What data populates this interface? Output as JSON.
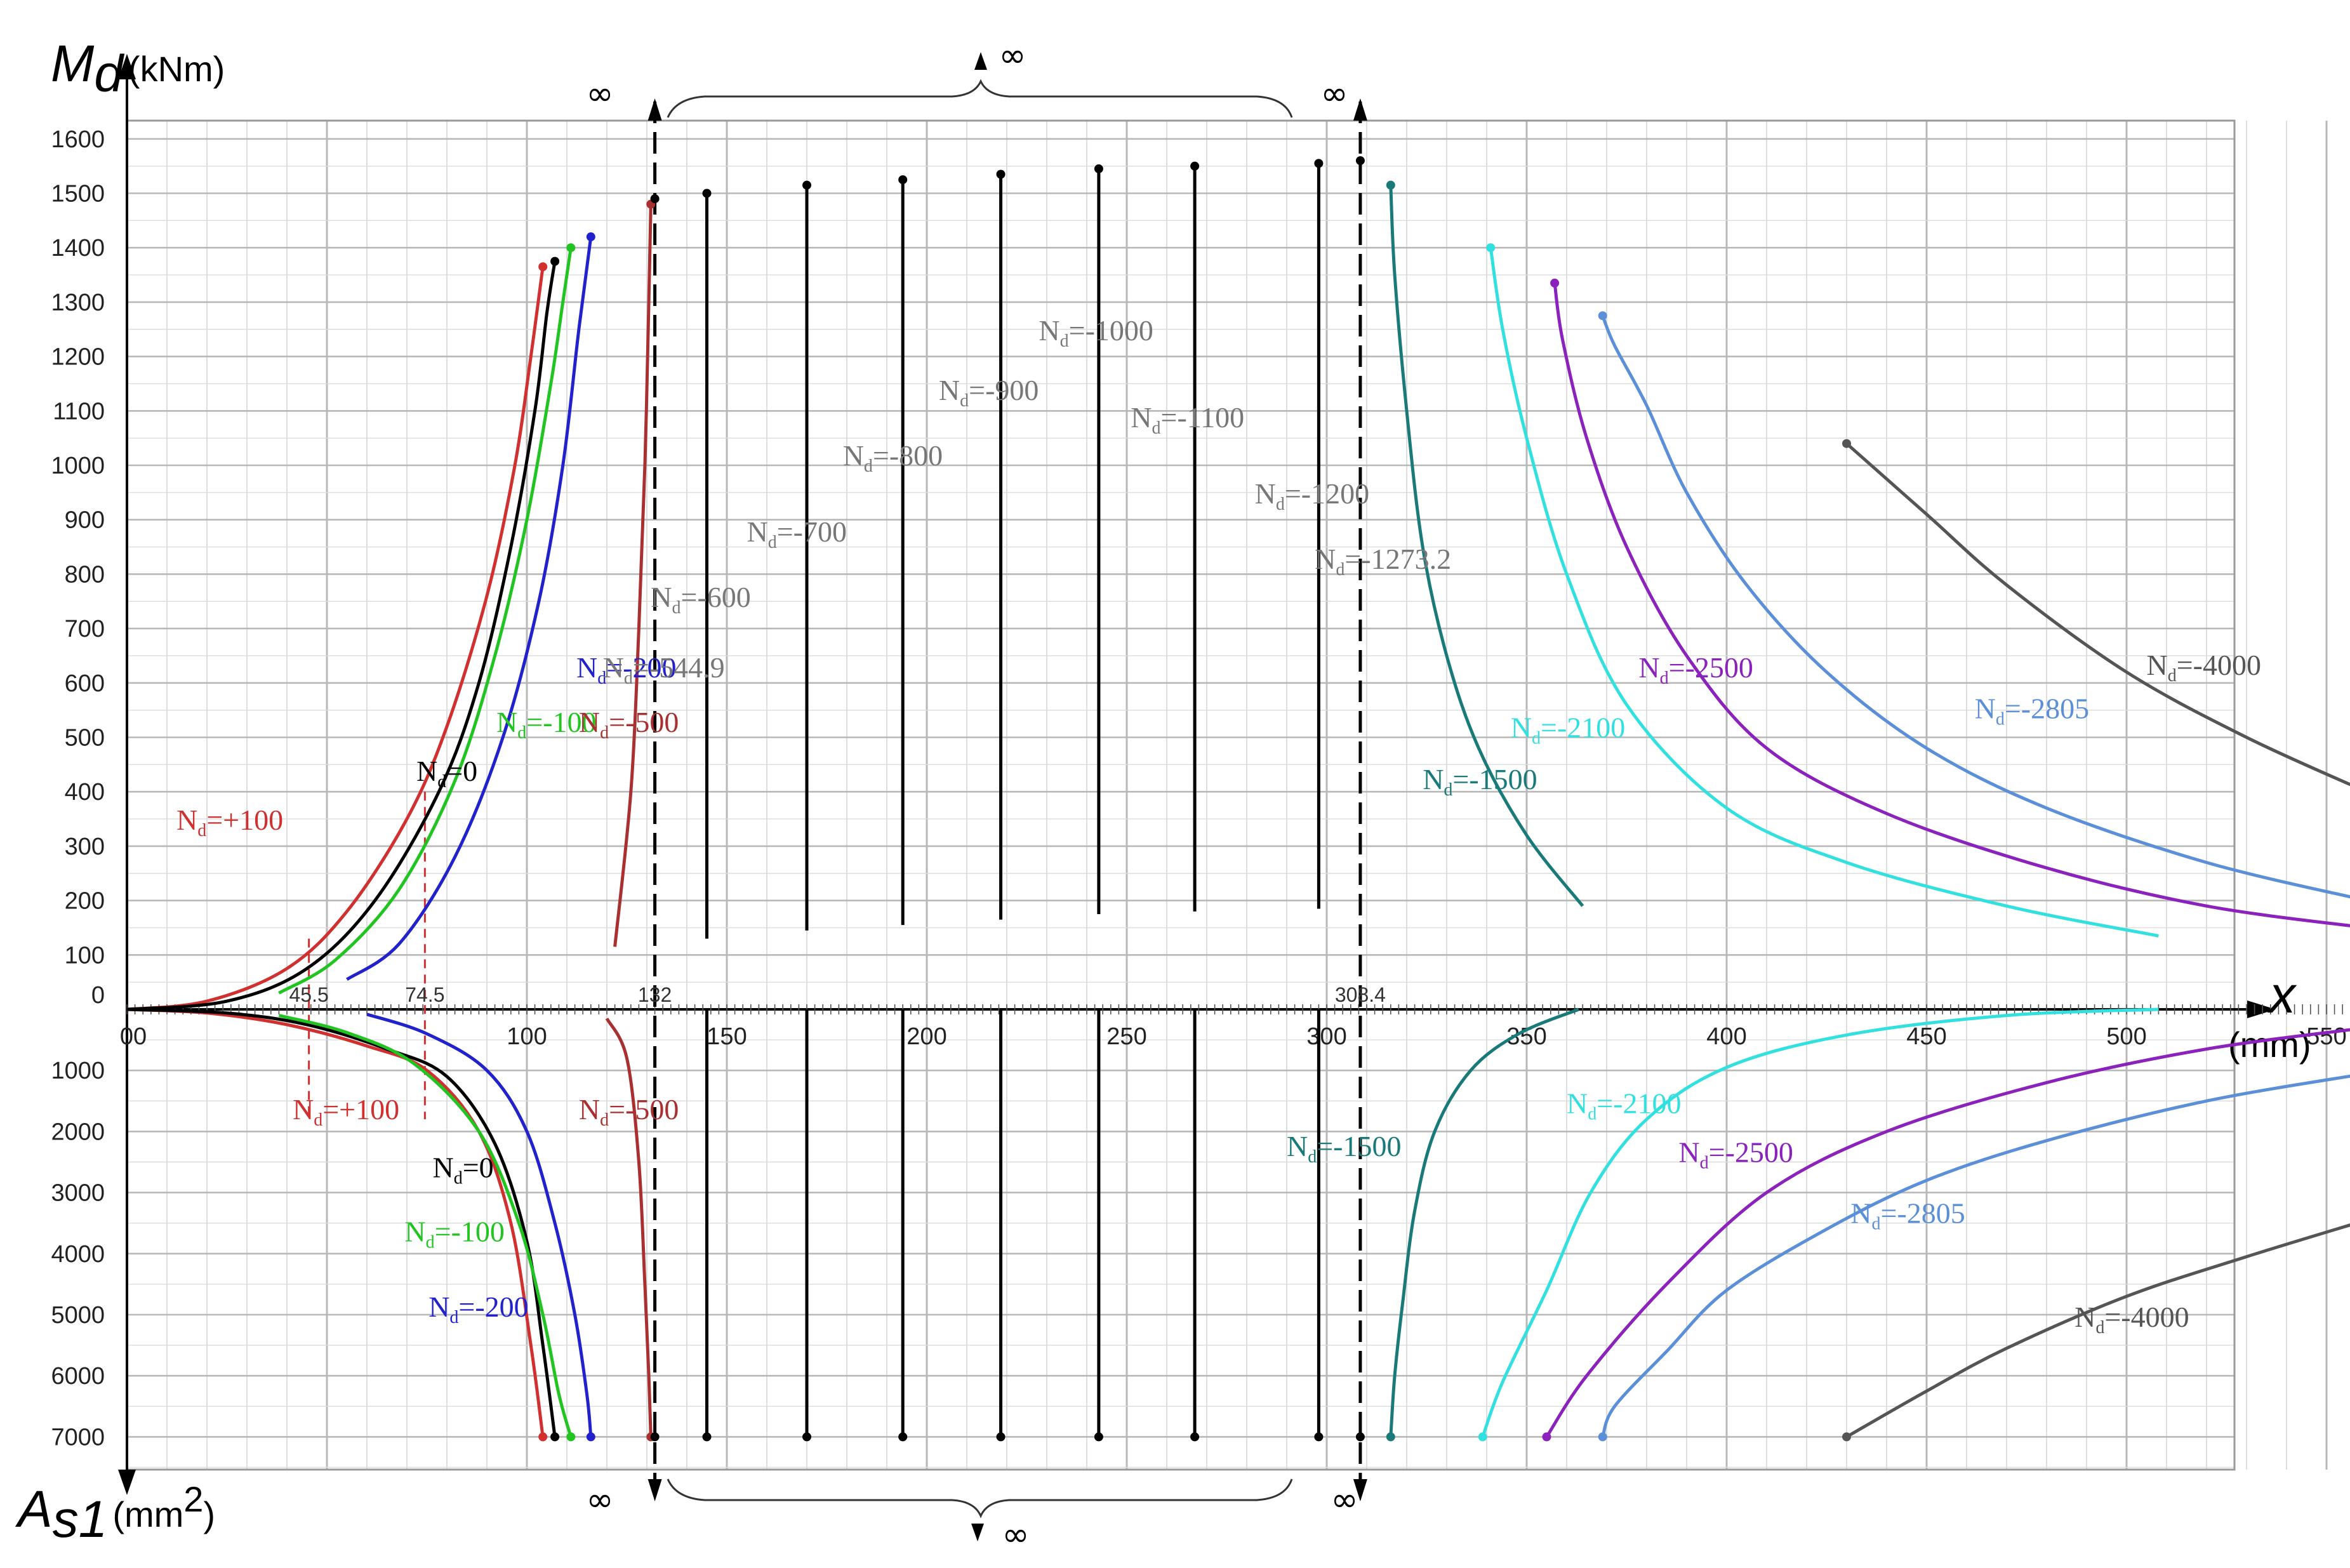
{
  "chart_data": {
    "type": "line",
    "title": "",
    "top_axis": {
      "symbol": "M",
      "subscript": "d",
      "unit": "(kNm)",
      "range": [
        0,
        1600
      ],
      "ticks": [
        "0",
        "100",
        "200",
        "300",
        "400",
        "500",
        "600",
        "700",
        "800",
        "900",
        "1000",
        "1100",
        "1200",
        "1300",
        "1400",
        "1500",
        "1600"
      ]
    },
    "bottom_axis": {
      "symbol": "A",
      "subscript": "s1",
      "unit": "(mm",
      "unit_sup": "2",
      "unit_close": ")",
      "range": [
        0,
        7000
      ],
      "ticks": [
        "1000",
        "2000",
        "3000",
        "4000",
        "5000",
        "6000",
        "7000"
      ]
    },
    "x_axis": {
      "symbol": "x",
      "unit": "(mm)",
      "range": [
        0,
        560
      ],
      "ticks": [
        "00",
        "100",
        "150",
        "200",
        "250",
        "300",
        "350",
        "400",
        "450",
        "500",
        "550"
      ]
    },
    "infinity_symbol": "∞",
    "marked_x": [
      {
        "label": "45.5",
        "x": 45.5,
        "color": "#d03030"
      },
      {
        "label": "74.5",
        "x": 74.5,
        "color": "#d03030"
      },
      {
        "label": "132",
        "x": 132,
        "color": "#000000"
      },
      {
        "label": "308.4",
        "x": 308.4,
        "color": "#000000"
      }
    ],
    "vertical_lines": [
      {
        "x": 145,
        "md_top": 1500,
        "md_bottom": 130,
        "as_end": 7000
      },
      {
        "x": 170,
        "md_top": 1515,
        "md_bottom": 145,
        "as_end": 7000
      },
      {
        "x": 194,
        "md_top": 1525,
        "md_bottom": 155,
        "as_end": 7000
      },
      {
        "x": 218.5,
        "md_top": 1535,
        "md_bottom": 165,
        "as_end": 7000
      },
      {
        "x": 243,
        "md_top": 1545,
        "md_bottom": 175,
        "as_end": 7000
      },
      {
        "x": 267,
        "md_top": 1550,
        "md_bottom": 180,
        "as_end": 7000
      },
      {
        "x": 298,
        "md_top": 1555,
        "md_bottom": 185,
        "as_end": 7000
      }
    ],
    "series": [
      {
        "name": "Nₐ=+100",
        "label_text": "+100",
        "color": "#d03030",
        "top": [
          [
            0,
            0
          ],
          [
            20,
            15
          ],
          [
            40,
            75
          ],
          [
            55,
            180
          ],
          [
            70,
            350
          ],
          [
            80,
            520
          ],
          [
            90,
            760
          ],
          [
            97,
            1000
          ],
          [
            101,
            1200
          ],
          [
            104,
            1365
          ]
        ],
        "bottom": [
          [
            0,
            0
          ],
          [
            20,
            60
          ],
          [
            40,
            250
          ],
          [
            60,
            600
          ],
          [
            75,
            1000
          ],
          [
            88,
            2000
          ],
          [
            96,
            3500
          ],
          [
            101,
            5500
          ],
          [
            104,
            7000
          ]
        ]
      },
      {
        "name": "0",
        "label_text": "0",
        "color": "#000000",
        "top": [
          [
            0,
            0
          ],
          [
            25,
            15
          ],
          [
            45,
            75
          ],
          [
            62,
            200
          ],
          [
            78,
            400
          ],
          [
            88,
            600
          ],
          [
            96,
            850
          ],
          [
            102,
            1100
          ],
          [
            105,
            1280
          ],
          [
            107,
            1375
          ]
        ],
        "bottom": [
          [
            0,
            0
          ],
          [
            25,
            60
          ],
          [
            45,
            250
          ],
          [
            65,
            650
          ],
          [
            80,
            1100
          ],
          [
            92,
            2200
          ],
          [
            100,
            3800
          ],
          [
            104,
            5500
          ],
          [
            107,
            7000
          ]
        ]
      },
      {
        "name": "-100",
        "label_text": "-100",
        "color": "#22c422",
        "top": [
          [
            38,
            30
          ],
          [
            52,
            90
          ],
          [
            68,
            220
          ],
          [
            82,
            420
          ],
          [
            92,
            650
          ],
          [
            100,
            900
          ],
          [
            106,
            1150
          ],
          [
            109,
            1300
          ],
          [
            111,
            1400
          ]
        ],
        "bottom": [
          [
            38,
            100
          ],
          [
            55,
            380
          ],
          [
            72,
            900
          ],
          [
            88,
            2000
          ],
          [
            98,
            3500
          ],
          [
            104,
            5000
          ],
          [
            108,
            6300
          ],
          [
            111,
            7000
          ]
        ]
      },
      {
        "name": "-200",
        "label_text": "-200",
        "color": "#2222cc",
        "top": [
          [
            55,
            55
          ],
          [
            68,
            120
          ],
          [
            82,
            280
          ],
          [
            94,
            500
          ],
          [
            103,
            750
          ],
          [
            109,
            1000
          ],
          [
            113,
            1250
          ],
          [
            116,
            1420
          ]
        ],
        "bottom": [
          [
            60,
            80
          ],
          [
            75,
            400
          ],
          [
            90,
            1000
          ],
          [
            100,
            2000
          ],
          [
            107,
            3500
          ],
          [
            112,
            5000
          ],
          [
            115,
            6300
          ],
          [
            116,
            7000
          ]
        ]
      },
      {
        "name": "-500",
        "label_text": "-500",
        "color": "#a83030",
        "top": [
          [
            122,
            115
          ],
          [
            126,
            400
          ],
          [
            128,
            700
          ],
          [
            129.5,
            1000
          ],
          [
            130.5,
            1300
          ],
          [
            131,
            1480
          ]
        ],
        "bottom": [
          [
            120,
            150
          ],
          [
            125,
            800
          ],
          [
            128,
            2500
          ],
          [
            129.5,
            4500
          ],
          [
            130.5,
            6000
          ],
          [
            131,
            7000
          ]
        ]
      },
      {
        "name": "-1500",
        "label_text": "-1500",
        "color": "#1a7a7a",
        "top": [
          [
            364,
            190
          ],
          [
            350,
            320
          ],
          [
            338,
            480
          ],
          [
            330,
            650
          ],
          [
            324,
            850
          ],
          [
            320,
            1100
          ],
          [
            317,
            1350
          ],
          [
            316,
            1515
          ]
        ],
        "bottom": [
          [
            363,
            0
          ],
          [
            348,
            400
          ],
          [
            336,
            1000
          ],
          [
            327,
            2000
          ],
          [
            322,
            3300
          ],
          [
            319,
            4800
          ],
          [
            317,
            6000
          ],
          [
            316,
            7000
          ]
        ]
      },
      {
        "name": "-2100",
        "label_text": "-2100",
        "color": "#33e0e0",
        "top": [
          [
            508,
            135
          ],
          [
            470,
            190
          ],
          [
            430,
            270
          ],
          [
            400,
            370
          ],
          [
            375,
            560
          ],
          [
            360,
            800
          ],
          [
            350,
            1050
          ],
          [
            344,
            1250
          ],
          [
            341,
            1400
          ]
        ],
        "bottom": [
          [
            508,
            0
          ],
          [
            470,
            100
          ],
          [
            430,
            420
          ],
          [
            400,
            950
          ],
          [
            380,
            1800
          ],
          [
            366,
            3000
          ],
          [
            355,
            4600
          ],
          [
            344,
            6100
          ],
          [
            339,
            7000
          ]
        ]
      },
      {
        "name": "-2500",
        "label_text": "-2500",
        "color": "#8a22bb",
        "top": [
          [
            560,
            150
          ],
          [
            520,
            190
          ],
          [
            480,
            260
          ],
          [
            440,
            360
          ],
          [
            410,
            480
          ],
          [
            390,
            650
          ],
          [
            375,
            850
          ],
          [
            365,
            1050
          ],
          [
            359,
            1230
          ],
          [
            357,
            1335
          ]
        ],
        "bottom": [
          [
            560,
            300
          ],
          [
            520,
            650
          ],
          [
            480,
            1200
          ],
          [
            440,
            2000
          ],
          [
            410,
            3000
          ],
          [
            385,
            4500
          ],
          [
            365,
            6000
          ],
          [
            355,
            7000
          ]
        ]
      },
      {
        "name": "-2805",
        "label_text": "-2805",
        "color": "#5b8fd8",
        "top": [
          [
            560,
            200
          ],
          [
            520,
            270
          ],
          [
            480,
            370
          ],
          [
            450,
            480
          ],
          [
            425,
            620
          ],
          [
            405,
            780
          ],
          [
            390,
            950
          ],
          [
            380,
            1110
          ],
          [
            372,
            1220
          ],
          [
            369,
            1275
          ]
        ],
        "bottom": [
          [
            560,
            1050
          ],
          [
            520,
            1500
          ],
          [
            480,
            2150
          ],
          [
            450,
            2800
          ],
          [
            425,
            3600
          ],
          [
            400,
            4600
          ],
          [
            385,
            5600
          ],
          [
            372,
            6500
          ],
          [
            369,
            7000
          ]
        ]
      },
      {
        "name": "-4000",
        "label_text": "-4000",
        "color": "#555555",
        "top": [
          [
            560,
            400
          ],
          [
            530,
            500
          ],
          [
            500,
            620
          ],
          [
            470,
            780
          ],
          [
            450,
            910
          ],
          [
            430,
            1040
          ]
        ],
        "bottom": [
          [
            560,
            3450
          ],
          [
            530,
            4050
          ],
          [
            500,
            4700
          ],
          [
            470,
            5550
          ],
          [
            450,
            6250
          ],
          [
            430,
            7000
          ]
        ]
      }
    ],
    "curve_labels_top": [
      {
        "series": "+100",
        "text": "+100",
        "color": "#d03030",
        "pos": [
          -40,
          330
        ],
        "anchor": "end"
      },
      {
        "series": "0",
        "text": "0",
        "color": "#000000",
        "pos": [
          20,
          420
        ],
        "anchor": "end"
      },
      {
        "series": "-100",
        "text": "-100",
        "color": "#22c422",
        "pos": [
          40,
          510
        ],
        "anchor": "end"
      },
      {
        "series": "-200",
        "text": "-200",
        "color": "#2222cc",
        "pos": [
          60,
          610
        ],
        "anchor": "end"
      },
      {
        "series": "-500",
        "text": "-500",
        "color": "#a83030",
        "pos": [
          113,
          510
        ],
        "anchor": "start"
      },
      {
        "series": "-544.9",
        "text": "-544.9",
        "color": "#777777",
        "pos": [
          119,
          610
        ],
        "anchor": "start"
      },
      {
        "series": "-600",
        "text": "-600",
        "color": "#777777",
        "pos": [
          131,
          740
        ],
        "anchor": "start"
      },
      {
        "series": "-700",
        "text": "-700",
        "color": "#777777",
        "pos": [
          155,
          860
        ],
        "anchor": "start"
      },
      {
        "series": "-800",
        "text": "-800",
        "color": "#777777",
        "pos": [
          179,
          1000
        ],
        "anchor": "start"
      },
      {
        "series": "-900",
        "text": "-900",
        "color": "#777777",
        "pos": [
          203,
          1120
        ],
        "anchor": "start"
      },
      {
        "series": "-1000",
        "text": "-1000",
        "color": "#777777",
        "pos": [
          228,
          1230
        ],
        "anchor": "start"
      },
      {
        "series": "-1100",
        "text": "-1100",
        "color": "#777777",
        "pos": [
          251,
          1070
        ],
        "anchor": "start"
      },
      {
        "series": "-1200",
        "text": "-1200",
        "color": "#777777",
        "pos": [
          282,
          930
        ],
        "anchor": "start"
      },
      {
        "series": "-1273.2",
        "text": "-1273.2",
        "color": "#777777",
        "pos": [
          297,
          810
        ],
        "anchor": "start"
      },
      {
        "series": "-1500",
        "text": "-1500",
        "color": "#1a7a7a",
        "pos": [
          324,
          405
        ],
        "anchor": "start"
      },
      {
        "series": "-2100",
        "text": "-2100",
        "color": "#33e0e0",
        "pos": [
          346,
          500
        ],
        "anchor": "start"
      },
      {
        "series": "-2500",
        "text": "-2500",
        "color": "#8a22bb",
        "pos": [
          378,
          610
        ],
        "anchor": "start"
      },
      {
        "series": "-2805",
        "text": "-2805",
        "color": "#5b8fd8",
        "pos": [
          462,
          535
        ],
        "anchor": "start"
      },
      {
        "series": "-4000",
        "text": "-4000",
        "color": "#555555",
        "pos": [
          505,
          615
        ],
        "anchor": "start"
      }
    ],
    "curve_labels_bottom": [
      {
        "text": "+100",
        "color": "#d03030",
        "pos": [
          20,
          1800
        ],
        "anchor": "start"
      },
      {
        "text": "0",
        "color": "#000000",
        "pos": [
          55,
          2750
        ],
        "anchor": "start"
      },
      {
        "text": "-100",
        "color": "#22c422",
        "pos": [
          48,
          3800
        ],
        "anchor": "start"
      },
      {
        "text": "-200",
        "color": "#2222cc",
        "pos": [
          54,
          5030
        ],
        "anchor": "start"
      },
      {
        "text": "-500",
        "color": "#a83030",
        "pos": [
          113,
          1800
        ],
        "anchor": "start"
      },
      {
        "text": "-1500",
        "color": "#1a7a7a",
        "pos": [
          290,
          2400
        ],
        "anchor": "start"
      },
      {
        "text": "-2100",
        "color": "#33e0e0",
        "pos": [
          360,
          1700
        ],
        "anchor": "start"
      },
      {
        "text": "-2500",
        "color": "#8a22bb",
        "pos": [
          388,
          2500
        ],
        "anchor": "start"
      },
      {
        "text": "-2805",
        "color": "#5b8fd8",
        "pos": [
          431,
          3500
        ],
        "anchor": "start"
      },
      {
        "text": "-4000",
        "color": "#555555",
        "pos": [
          487,
          5200
        ],
        "anchor": "start"
      }
    ],
    "label_prefix": "N",
    "label_sub": "d",
    "label_eq": "="
  }
}
